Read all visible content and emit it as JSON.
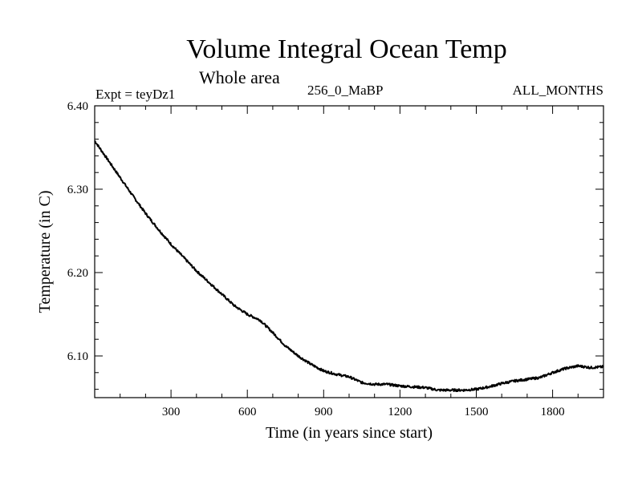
{
  "chart_data": {
    "type": "line",
    "title": "Volume Integral Ocean Temp",
    "subtitle": "Whole area",
    "experiment": "Expt = teyDz1",
    "period": "256_0_MaBP",
    "months": "ALL_MONTHS",
    "xlabel": "Time (in years since start)",
    "ylabel": "Temperature (in C)",
    "xlim": [
      0,
      2000
    ],
    "ylim": [
      6.05,
      6.4
    ],
    "xticks": [
      300,
      600,
      900,
      1200,
      1500,
      1800
    ],
    "xtick_labels": [
      "300",
      "600",
      "900",
      "1200",
      "1500",
      "1800"
    ],
    "yticks": [
      6.1,
      6.2,
      6.3,
      6.4
    ],
    "ytick_labels": [
      "6.10",
      "6.20",
      "6.30",
      "6.40"
    ],
    "grid": false,
    "series": [
      {
        "name": "Volume Integral Ocean Temp",
        "x": [
          0,
          50,
          100,
          150,
          200,
          250,
          300,
          350,
          400,
          450,
          500,
          550,
          600,
          650,
          700,
          750,
          800,
          850,
          900,
          950,
          1000,
          1050,
          1100,
          1150,
          1200,
          1250,
          1300,
          1350,
          1400,
          1450,
          1500,
          1550,
          1600,
          1650,
          1700,
          1750,
          1800,
          1850,
          1900,
          1950,
          2000
        ],
        "values": [
          6.358,
          6.336,
          6.314,
          6.292,
          6.271,
          6.252,
          6.234,
          6.218,
          6.202,
          6.188,
          6.174,
          6.16,
          6.15,
          6.143,
          6.128,
          6.112,
          6.1,
          6.09,
          6.082,
          6.078,
          6.075,
          6.068,
          6.066,
          6.066,
          6.064,
          6.063,
          6.062,
          6.059,
          6.059,
          6.059,
          6.06,
          6.063,
          6.067,
          6.07,
          6.072,
          6.074,
          6.08,
          6.085,
          6.088,
          6.086,
          6.087
        ]
      }
    ]
  }
}
